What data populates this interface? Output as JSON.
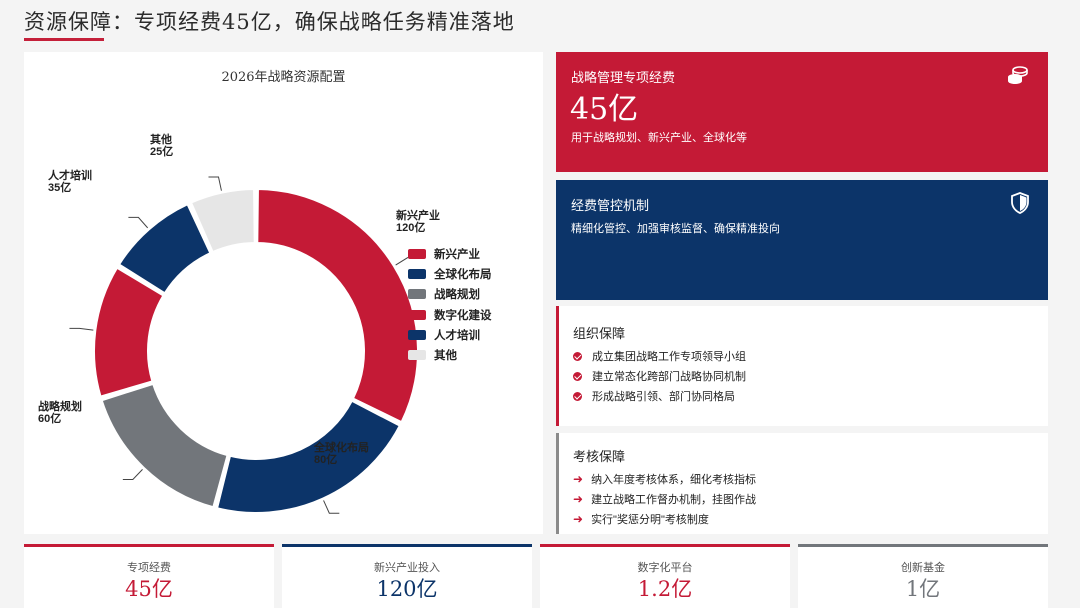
{
  "page": {
    "title": "资源保障：专项经费45亿，确保战略任务精准落地"
  },
  "colors": {
    "red": "#c41a36",
    "navy": "#0c3469",
    "gray": "#72767b",
    "light_gray": "#e6e6e6",
    "accent_line": "#c4203a"
  },
  "chart_data": {
    "type": "pie",
    "variant": "donut",
    "title": "2026年战略资源配置",
    "unit": "亿",
    "categories": [
      "新兴产业",
      "全球化布局",
      "战略规划",
      "数字化建设",
      "人才培训",
      "其他"
    ],
    "values": [
      120,
      80,
      60,
      50,
      35,
      25
    ],
    "slice_labels": [
      "120亿",
      "80亿",
      "60亿",
      "",
      "35亿",
      "25亿"
    ],
    "slice_colors": [
      "#c41a36",
      "#0c3469",
      "#72767b",
      "#c41a36",
      "#0c3469",
      "#e6e6e6"
    ],
    "legend_position": "right",
    "start_angle_deg": 0,
    "direction": "clockwise"
  },
  "cards": {
    "budget": {
      "label": "战略管理专项经费",
      "value": "45亿",
      "desc": "用于战略规划、新兴产业、全球化等",
      "icon": "coins-icon"
    },
    "control": {
      "label": "经费管控机制",
      "desc": "精细化管控、加强审核监督、确保精准投向",
      "icon": "shield-icon"
    }
  },
  "org": {
    "title": "组织保障",
    "items": [
      "成立集团战略工作专项领导小组",
      "建立常态化跨部门战略协同机制",
      "形成战略引领、部门协同格局"
    ],
    "icon": "check-circle-icon"
  },
  "assess": {
    "title": "考核保障",
    "items": [
      "纳入年度考核体系，细化考核指标",
      "建立战略工作督办机制，挂图作战",
      "实行\"奖惩分明\"考核制度"
    ],
    "icon": "arrow-right-icon"
  },
  "stats": [
    {
      "label": "专项经费",
      "value": "45亿",
      "color": "#c41a36"
    },
    {
      "label": "新兴产业投入",
      "value": "120亿",
      "color": "#0c3469"
    },
    {
      "label": "数字化平台",
      "value": "1.2亿",
      "color": "#c41a36"
    },
    {
      "label": "创新基金",
      "value": "1亿",
      "color": "#72767b"
    }
  ]
}
